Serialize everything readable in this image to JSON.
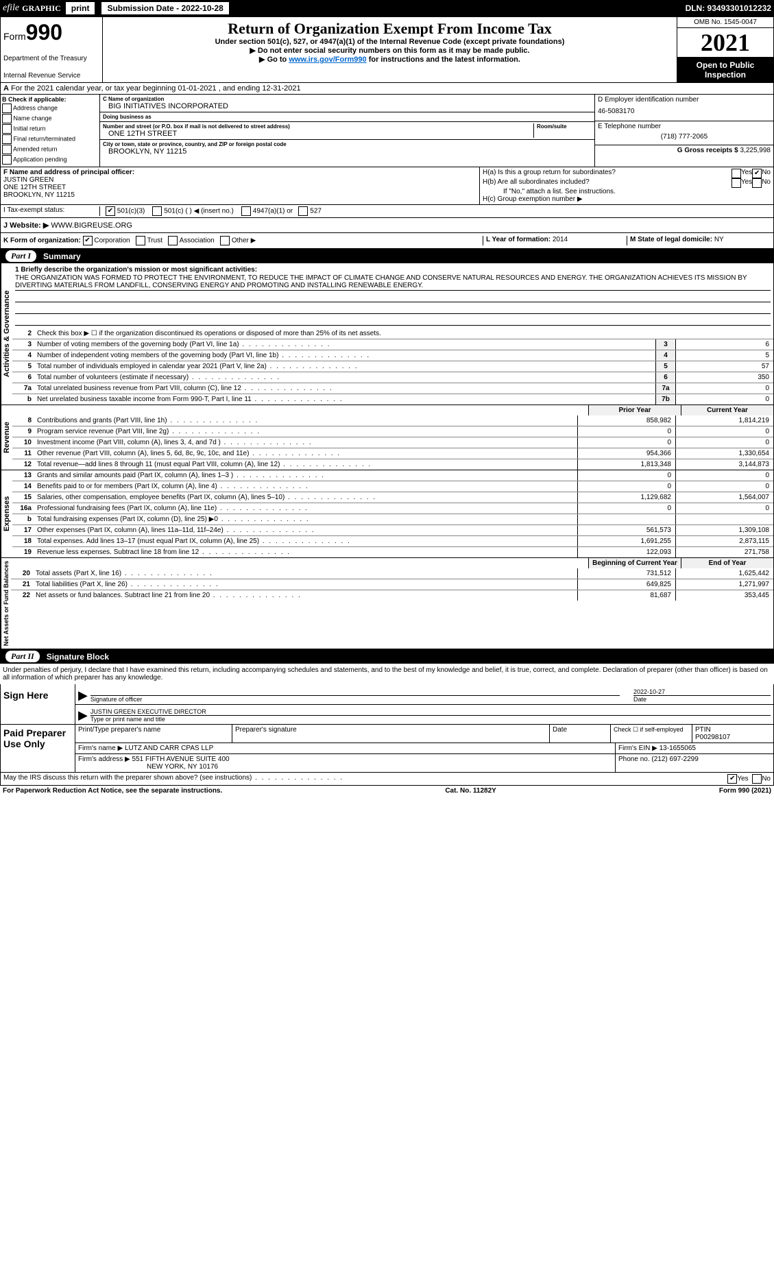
{
  "topbar": {
    "efile": "efile",
    "graphic": "GRAPHIC",
    "print": "print",
    "subdate_label": "Submission Date - 2022-10-28",
    "dln": "DLN: 93493301012232"
  },
  "header": {
    "form_label": "Form",
    "form_number": "990",
    "dept1": "Department of the Treasury",
    "dept2": "Internal Revenue Service",
    "title": "Return of Organization Exempt From Income Tax",
    "subtitle": "Under section 501(c), 527, or 4947(a)(1) of the Internal Revenue Code (except private foundations)",
    "note1": "Do not enter social security numbers on this form as it may be made public.",
    "note2_pre": "Go to ",
    "note2_link": "www.irs.gov/Form990",
    "note2_post": " for instructions and the latest information.",
    "omb": "OMB No. 1545-0047",
    "year": "2021",
    "inspect": "Open to Public Inspection"
  },
  "row_a": {
    "text": "For the 2021 calendar year, or tax year beginning 01-01-2021     , and ending 12-31-2021"
  },
  "col_b": {
    "label": "B Check if applicable:",
    "items": [
      "Address change",
      "Name change",
      "Initial return",
      "Final return/terminated",
      "Amended return",
      "Application pending"
    ]
  },
  "col_c": {
    "name_lbl": "C Name of organization",
    "name": "BIG INITIATIVES INCORPORATED",
    "dba_lbl": "Doing business as",
    "dba": "",
    "street_lbl": "Number and street (or P.O. box if mail is not delivered to street address)",
    "room_lbl": "Room/suite",
    "street": "ONE 12TH STREET",
    "city_lbl": "City or town, state or province, country, and ZIP or foreign postal code",
    "city": "BROOKLYN, NY  11215"
  },
  "col_de": {
    "d_lbl": "D Employer identification number",
    "d_val": "46-5083170",
    "e_lbl": "E Telephone number",
    "e_val": "(718) 777-2065",
    "g_lbl": "G Gross receipts $",
    "g_val": "3,225,998"
  },
  "row_f": {
    "lbl": "F Name and address of principal officer:",
    "name": "JUSTIN GREEN",
    "addr1": "ONE 12TH STREET",
    "addr2": "BROOKLYN, NY  11215"
  },
  "row_h": {
    "ha": "H(a)  Is this a group return for subordinates?",
    "hb": "H(b)  Are all subordinates included?",
    "hb_note": "If \"No,\" attach a list. See instructions.",
    "hc": "H(c)  Group exemption number ▶",
    "yes": "Yes",
    "no": "No"
  },
  "row_i": {
    "lbl": "I   Tax-exempt status:",
    "opt1": "501(c)(3)",
    "opt2": "501(c) (   ) ◀ (insert no.)",
    "opt3": "4947(a)(1) or",
    "opt4": "527"
  },
  "row_j": {
    "lbl": "J   Website: ▶",
    "val": "WWW.BIGREUSE.ORG"
  },
  "row_k": {
    "lbl": "K Form of organization:",
    "opts": [
      "Corporation",
      "Trust",
      "Association",
      "Other ▶"
    ],
    "l_lbl": "L Year of formation:",
    "l_val": "2014",
    "m_lbl": "M State of legal domicile:",
    "m_val": "NY"
  },
  "part1": {
    "num": "Part I",
    "title": "Summary"
  },
  "governance": {
    "label": "Activities & Governance",
    "line1_lbl": "1   Briefly describe the organization's mission or most significant activities:",
    "mission": "THE ORGANIZATION WAS FORMED TO PROTECT THE ENVIRONMENT, TO REDUCE THE IMPACT OF CLIMATE CHANGE AND CONSERVE NATURAL RESOURCES AND ENERGY. THE ORGANIZATION ACHIEVES ITS MISSION BY DIVERTING MATERIALS FROM LANDFILL, CONSERVING ENERGY AND PROMOTING AND INSTALLING RENEWABLE ENERGY.",
    "line2": "Check this box ▶ ☐ if the organization discontinued its operations or disposed of more than 25% of its net assets.",
    "rows": [
      {
        "n": "3",
        "t": "Number of voting members of the governing body (Part VI, line 1a)",
        "box": "3",
        "v": "6"
      },
      {
        "n": "4",
        "t": "Number of independent voting members of the governing body (Part VI, line 1b)",
        "box": "4",
        "v": "5"
      },
      {
        "n": "5",
        "t": "Total number of individuals employed in calendar year 2021 (Part V, line 2a)",
        "box": "5",
        "v": "57"
      },
      {
        "n": "6",
        "t": "Total number of volunteers (estimate if necessary)",
        "box": "6",
        "v": "350"
      },
      {
        "n": "7a",
        "t": "Total unrelated business revenue from Part VIII, column (C), line 12",
        "box": "7a",
        "v": "0"
      },
      {
        "n": "b",
        "t": "Net unrelated business taxable income from Form 990-T, Part I, line 11",
        "box": "7b",
        "v": "0"
      }
    ]
  },
  "col_headers": {
    "prior": "Prior Year",
    "current": "Current Year"
  },
  "revenue": {
    "label": "Revenue",
    "rows": [
      {
        "n": "8",
        "t": "Contributions and grants (Part VIII, line 1h)",
        "p": "858,982",
        "c": "1,814,219"
      },
      {
        "n": "9",
        "t": "Program service revenue (Part VIII, line 2g)",
        "p": "0",
        "c": "0"
      },
      {
        "n": "10",
        "t": "Investment income (Part VIII, column (A), lines 3, 4, and 7d )",
        "p": "0",
        "c": "0"
      },
      {
        "n": "11",
        "t": "Other revenue (Part VIII, column (A), lines 5, 6d, 8c, 9c, 10c, and 11e)",
        "p": "954,366",
        "c": "1,330,654"
      },
      {
        "n": "12",
        "t": "Total revenue—add lines 8 through 11 (must equal Part VIII, column (A), line 12)",
        "p": "1,813,348",
        "c": "3,144,873"
      }
    ]
  },
  "expenses": {
    "label": "Expenses",
    "rows": [
      {
        "n": "13",
        "t": "Grants and similar amounts paid (Part IX, column (A), lines 1–3 )",
        "p": "0",
        "c": "0"
      },
      {
        "n": "14",
        "t": "Benefits paid to or for members (Part IX, column (A), line 4)",
        "p": "0",
        "c": "0"
      },
      {
        "n": "15",
        "t": "Salaries, other compensation, employee benefits (Part IX, column (A), lines 5–10)",
        "p": "1,129,682",
        "c": "1,564,007"
      },
      {
        "n": "16a",
        "t": "Professional fundraising fees (Part IX, column (A), line 11e)",
        "p": "0",
        "c": "0"
      },
      {
        "n": "b",
        "t": "Total fundraising expenses (Part IX, column (D), line 25) ▶0",
        "p": "",
        "c": ""
      },
      {
        "n": "17",
        "t": "Other expenses (Part IX, column (A), lines 11a–11d, 11f–24e)",
        "p": "561,573",
        "c": "1,309,108"
      },
      {
        "n": "18",
        "t": "Total expenses. Add lines 13–17 (must equal Part IX, column (A), line 25)",
        "p": "1,691,255",
        "c": "2,873,115"
      },
      {
        "n": "19",
        "t": "Revenue less expenses. Subtract line 18 from line 12",
        "p": "122,093",
        "c": "271,758"
      }
    ]
  },
  "netassets": {
    "label": "Net Assets or Fund Balances",
    "header_p": "Beginning of Current Year",
    "header_c": "End of Year",
    "rows": [
      {
        "n": "20",
        "t": "Total assets (Part X, line 16)",
        "p": "731,512",
        "c": "1,625,442"
      },
      {
        "n": "21",
        "t": "Total liabilities (Part X, line 26)",
        "p": "649,825",
        "c": "1,271,997"
      },
      {
        "n": "22",
        "t": "Net assets or fund balances. Subtract line 21 from line 20",
        "p": "81,687",
        "c": "353,445"
      }
    ]
  },
  "part2": {
    "num": "Part II",
    "title": "Signature Block"
  },
  "sig": {
    "penalty": "Under penalties of perjury, I declare that I have examined this return, including accompanying schedules and statements, and to the best of my knowledge and belief, it is true, correct, and complete. Declaration of preparer (other than officer) is based on all information of which preparer has any knowledge.",
    "sign_here": "Sign Here",
    "sig_officer": "Signature of officer",
    "date_lbl": "Date",
    "date_val": "2022-10-27",
    "name_title": "JUSTIN GREEN  EXECUTIVE DIRECTOR",
    "name_lbl": "Type or print name and title"
  },
  "paid": {
    "label": "Paid Preparer Use Only",
    "h1": "Print/Type preparer's name",
    "h2": "Preparer's signature",
    "h3": "Date",
    "h4_lbl": "Check ☐ if self-employed",
    "h5_lbl": "PTIN",
    "h5_val": "P00298107",
    "firm_name_lbl": "Firm's name    ▶",
    "firm_name": "LUTZ AND CARR CPAS LLP",
    "firm_ein_lbl": "Firm's EIN ▶",
    "firm_ein": "13-1655065",
    "firm_addr_lbl": "Firm's address ▶",
    "firm_addr1": "551 FIFTH AVENUE SUITE 400",
    "firm_addr2": "NEW YORK, NY  10176",
    "phone_lbl": "Phone no.",
    "phone": "(212) 697-2299"
  },
  "footer": {
    "discuss": "May the IRS discuss this return with the preparer shown above? (see instructions)",
    "yes": "Yes",
    "no": "No",
    "paperwork": "For Paperwork Reduction Act Notice, see the separate instructions.",
    "cat": "Cat. No. 11282Y",
    "form": "Form 990 (2021)"
  }
}
